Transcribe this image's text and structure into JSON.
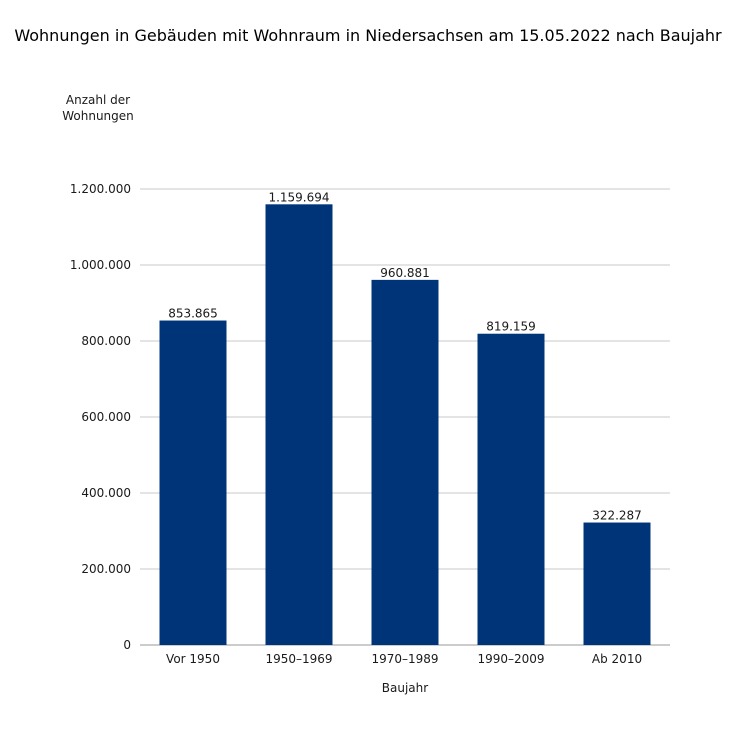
{
  "chart_data": {
    "type": "bar",
    "title": "Wohnungen in Gebäuden mit Wohnraum in Niedersachsen am 15.05.2022 nach Baujahr",
    "ylabel_lines": [
      "Anzahl der",
      "Wohnungen"
    ],
    "xlabel": "Baujahr",
    "categories": [
      "Vor 1950",
      "1950–1969",
      "1970–1989",
      "1990–2009",
      "Ab 2010"
    ],
    "values": [
      853865,
      1159694,
      960881,
      819159,
      322287
    ],
    "value_labels": [
      "853.865",
      "1.159.694",
      "960.881",
      "819.159",
      "322.287"
    ],
    "yticks": [
      0,
      200000,
      400000,
      600000,
      800000,
      1000000,
      1200000
    ],
    "ytick_labels": [
      "0",
      "200.000",
      "400.000",
      "600.000",
      "800.000",
      "1.000.000",
      "1.200.000"
    ],
    "ylim": [
      0,
      1200000
    ],
    "grid": true,
    "bar_color": "#003479",
    "grid_color": "#c8c8c8"
  }
}
